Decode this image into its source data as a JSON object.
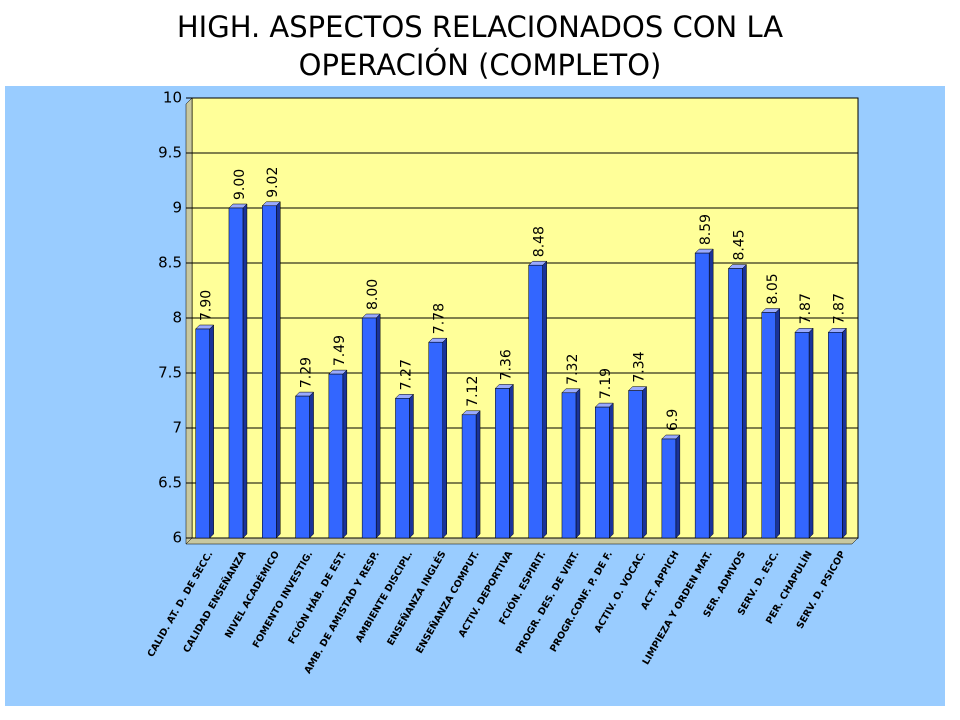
{
  "chart_data": {
    "type": "bar",
    "title": "HIGH. ASPECTOS RELACIONADOS CON LA OPERACIÓN (COMPLETO)",
    "categories": [
      "CALID. AT. D. DE SECC.",
      "CALIDAD ENSEÑANZA",
      "NIVEL ACADÉMICO",
      "FOMENTO INVESTIG.",
      "FCIÓN HÁB. DE EST.",
      "AMB. DE AMISTAD Y RESP.",
      "AMBIENTE DISCIPL.",
      "ENSEÑANZA INGLÉS",
      "ENSEÑANZA COMPUT.",
      "ACTIV. DEPORTIVA",
      "FCIÓN. ESPIRIT.",
      "PROGR. DES. DE VIRT.",
      "PROGR.CONF. P. DE F.",
      "ACTIV. O. VOCAC.",
      "ACT. APPICH",
      "LIMPIEZA Y ORDEN MAT.",
      "SER. ADMVOS",
      "SERV. D. ESC.",
      "PER. CHAPULÍN",
      "SERV. D. PSICOP"
    ],
    "values": [
      7.9,
      9.0,
      9.02,
      7.29,
      7.49,
      8.0,
      7.27,
      7.78,
      7.12,
      7.36,
      8.48,
      7.32,
      7.19,
      7.34,
      6.9,
      8.59,
      8.45,
      8.05,
      7.87,
      7.87
    ],
    "value_labels": [
      "7.90",
      "9.00",
      "9.02",
      "7.29",
      "7.49",
      "8.00",
      "7.27",
      "7.78",
      "7.12",
      "7.36",
      "8.48",
      "7.32",
      "7.19",
      "7.34",
      "6.9",
      "8.59",
      "8.45",
      "8.05",
      "7.87",
      "7.87"
    ],
    "color": "#3366ff",
    "ylim": [
      6,
      10
    ],
    "yticks": [
      6,
      6.5,
      7,
      7.5,
      8,
      8.5,
      9,
      9.5,
      10
    ],
    "grid": true
  }
}
